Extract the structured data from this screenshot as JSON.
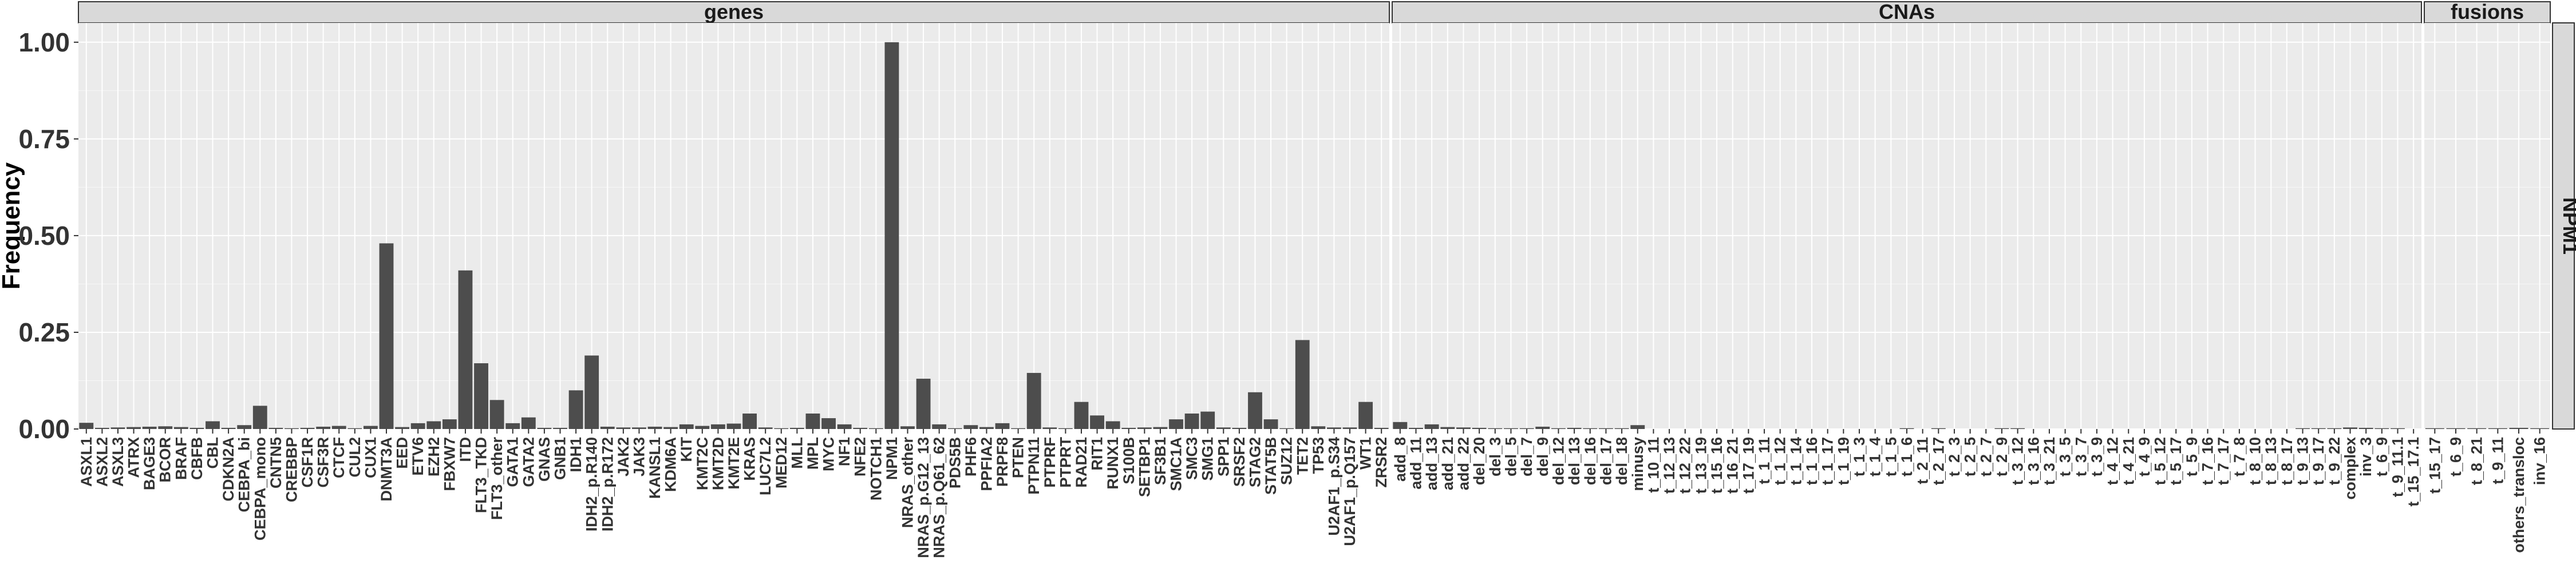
{
  "chart_data": {
    "type": "bar",
    "ylabel": "Frequency",
    "xlabel": "",
    "ylim": [
      0,
      1.05
    ],
    "yticks": [
      "0.00",
      "0.25",
      "0.50",
      "0.75",
      "1.00"
    ],
    "ytick_values": [
      0,
      0.25,
      0.5,
      0.75,
      1.0
    ],
    "row_facet": "NPM1",
    "grid": true,
    "bar_color": "#4d4d4d",
    "panel_color": "#ebebeb",
    "facets": [
      {
        "name": "genes",
        "categories": [
          "ASXL1",
          "ASXL2",
          "ASXL3",
          "ATRX",
          "BAGE3",
          "BCOR",
          "BRAF",
          "CBFB",
          "CBL",
          "CDKN2A",
          "CEBPA_bi",
          "CEBPA_mono",
          "CNTN5",
          "CREBBP",
          "CSF1R",
          "CSF3R",
          "CTCF",
          "CUL2",
          "CUX1",
          "DNMT3A",
          "EED",
          "ETV6",
          "EZH2",
          "FBXW7",
          "ITD",
          "FLT3_TKD",
          "FLT3_other",
          "GATA1",
          "GATA2",
          "GNAS",
          "GNB1",
          "IDH1",
          "IDH2_p.R140",
          "IDH2_p.R172",
          "JAK2",
          "JAK3",
          "KANSL1",
          "KDM6A",
          "KIT",
          "KMT2C",
          "KMT2D",
          "KMT2E",
          "KRAS",
          "LUC7L2",
          "MED12",
          "MLL",
          "MPL",
          "MYC",
          "NF1",
          "NFE2",
          "NOTCH1",
          "NPM1",
          "NRAS_other",
          "NRAS_p.G12_13",
          "NRAS_p.Q61_62",
          "PDS5B",
          "PHF6",
          "PPFIA2",
          "PRPF8",
          "PTEN",
          "PTPN11",
          "PTPRF",
          "PTPRT",
          "RAD21",
          "RIT1",
          "RUNX1",
          "S100B",
          "SETBP1",
          "SF3B1",
          "SMC1A",
          "SMC3",
          "SMG1",
          "SPP1",
          "SRSF2",
          "STAG2",
          "STAT5B",
          "SUZ12",
          "TET2",
          "TP53",
          "U2AF1_p.S34",
          "U2AF1_p.Q157",
          "WT1",
          "ZRSR2"
        ],
        "values": [
          0.016,
          0.003,
          0.004,
          0.005,
          0.006,
          0.007,
          0.005,
          0.003,
          0.02,
          0.003,
          0.01,
          0.06,
          0.003,
          0.002,
          0.003,
          0.006,
          0.008,
          0.002,
          0.008,
          0.48,
          0.005,
          0.015,
          0.02,
          0.025,
          0.41,
          0.17,
          0.075,
          0.015,
          0.03,
          0.003,
          0.003,
          0.1,
          0.19,
          0.006,
          0.004,
          0.004,
          0.006,
          0.005,
          0.012,
          0.008,
          0.012,
          0.014,
          0.04,
          0.004,
          0.002,
          0.003,
          0.04,
          0.028,
          0.012,
          0.003,
          0.002,
          1.0,
          0.007,
          0.13,
          0.012,
          0.002,
          0.01,
          0.005,
          0.015,
          0.002,
          0.145,
          0.004,
          0.002,
          0.07,
          0.035,
          0.02,
          0.003,
          0.004,
          0.005,
          0.025,
          0.04,
          0.045,
          0.004,
          0.003,
          0.095,
          0.025,
          0.002,
          0.23,
          0.007,
          0.004,
          0.004,
          0.07,
          0.003
        ]
      },
      {
        "name": "CNAs",
        "categories": [
          "add_8",
          "add_11",
          "add_13",
          "add_21",
          "add_22",
          "del_20",
          "del_3",
          "del_5",
          "del_7",
          "del_9",
          "del_12",
          "del_13",
          "del_16",
          "del_17",
          "del_18",
          "minusy",
          "t_10_11",
          "t_12_13",
          "t_12_22",
          "t_13_19",
          "t_15_16",
          "t_16_21",
          "t_17_19",
          "t_1_11",
          "t_1_12",
          "t_1_14",
          "t_1_16",
          "t_1_17",
          "t_1_19",
          "t_1_3",
          "t_1_4",
          "t_1_5",
          "t_1_6",
          "t_2_11",
          "t_2_17",
          "t_2_3",
          "t_2_5",
          "t_2_7",
          "t_2_9",
          "t_3_12",
          "t_3_16",
          "t_3_21",
          "t_3_5",
          "t_3_7",
          "t_3_9",
          "t_4_12",
          "t_4_21",
          "t_4_9",
          "t_5_12",
          "t_5_17",
          "t_5_9",
          "t_7_16",
          "t_7_17",
          "t_7_8",
          "t_8_10",
          "t_8_13",
          "t_8_17",
          "t_9_13",
          "t_9_17",
          "t_9_22",
          "complex",
          "inv_3",
          "t_6_9",
          "t_9_11.1",
          "t_15_17.1"
        ],
        "values": [
          0.018,
          0.003,
          0.012,
          0.005,
          0.004,
          0.003,
          0.002,
          0.002,
          0.002,
          0.006,
          0.002,
          0.003,
          0.002,
          0.002,
          0.002,
          0.01,
          0,
          0,
          0,
          0,
          0,
          0,
          0,
          0,
          0,
          0,
          0,
          0,
          0,
          0,
          0,
          0,
          0.002,
          0,
          0.002,
          0,
          0,
          0,
          0.002,
          0.002,
          0,
          0,
          0,
          0,
          0,
          0,
          0,
          0,
          0,
          0,
          0,
          0,
          0,
          0,
          0,
          0,
          0,
          0.002,
          0.002,
          0.002,
          0.004,
          0.003,
          0.002,
          0.002,
          0
        ]
      },
      {
        "name": "fusions",
        "categories": [
          "t_15_17",
          "t_6_9",
          "t_8_21",
          "t_9_11",
          "others_transloc",
          "inv_16"
        ],
        "values": [
          0.002,
          0.002,
          0.002,
          0.002,
          0.003,
          0.002
        ]
      }
    ]
  }
}
